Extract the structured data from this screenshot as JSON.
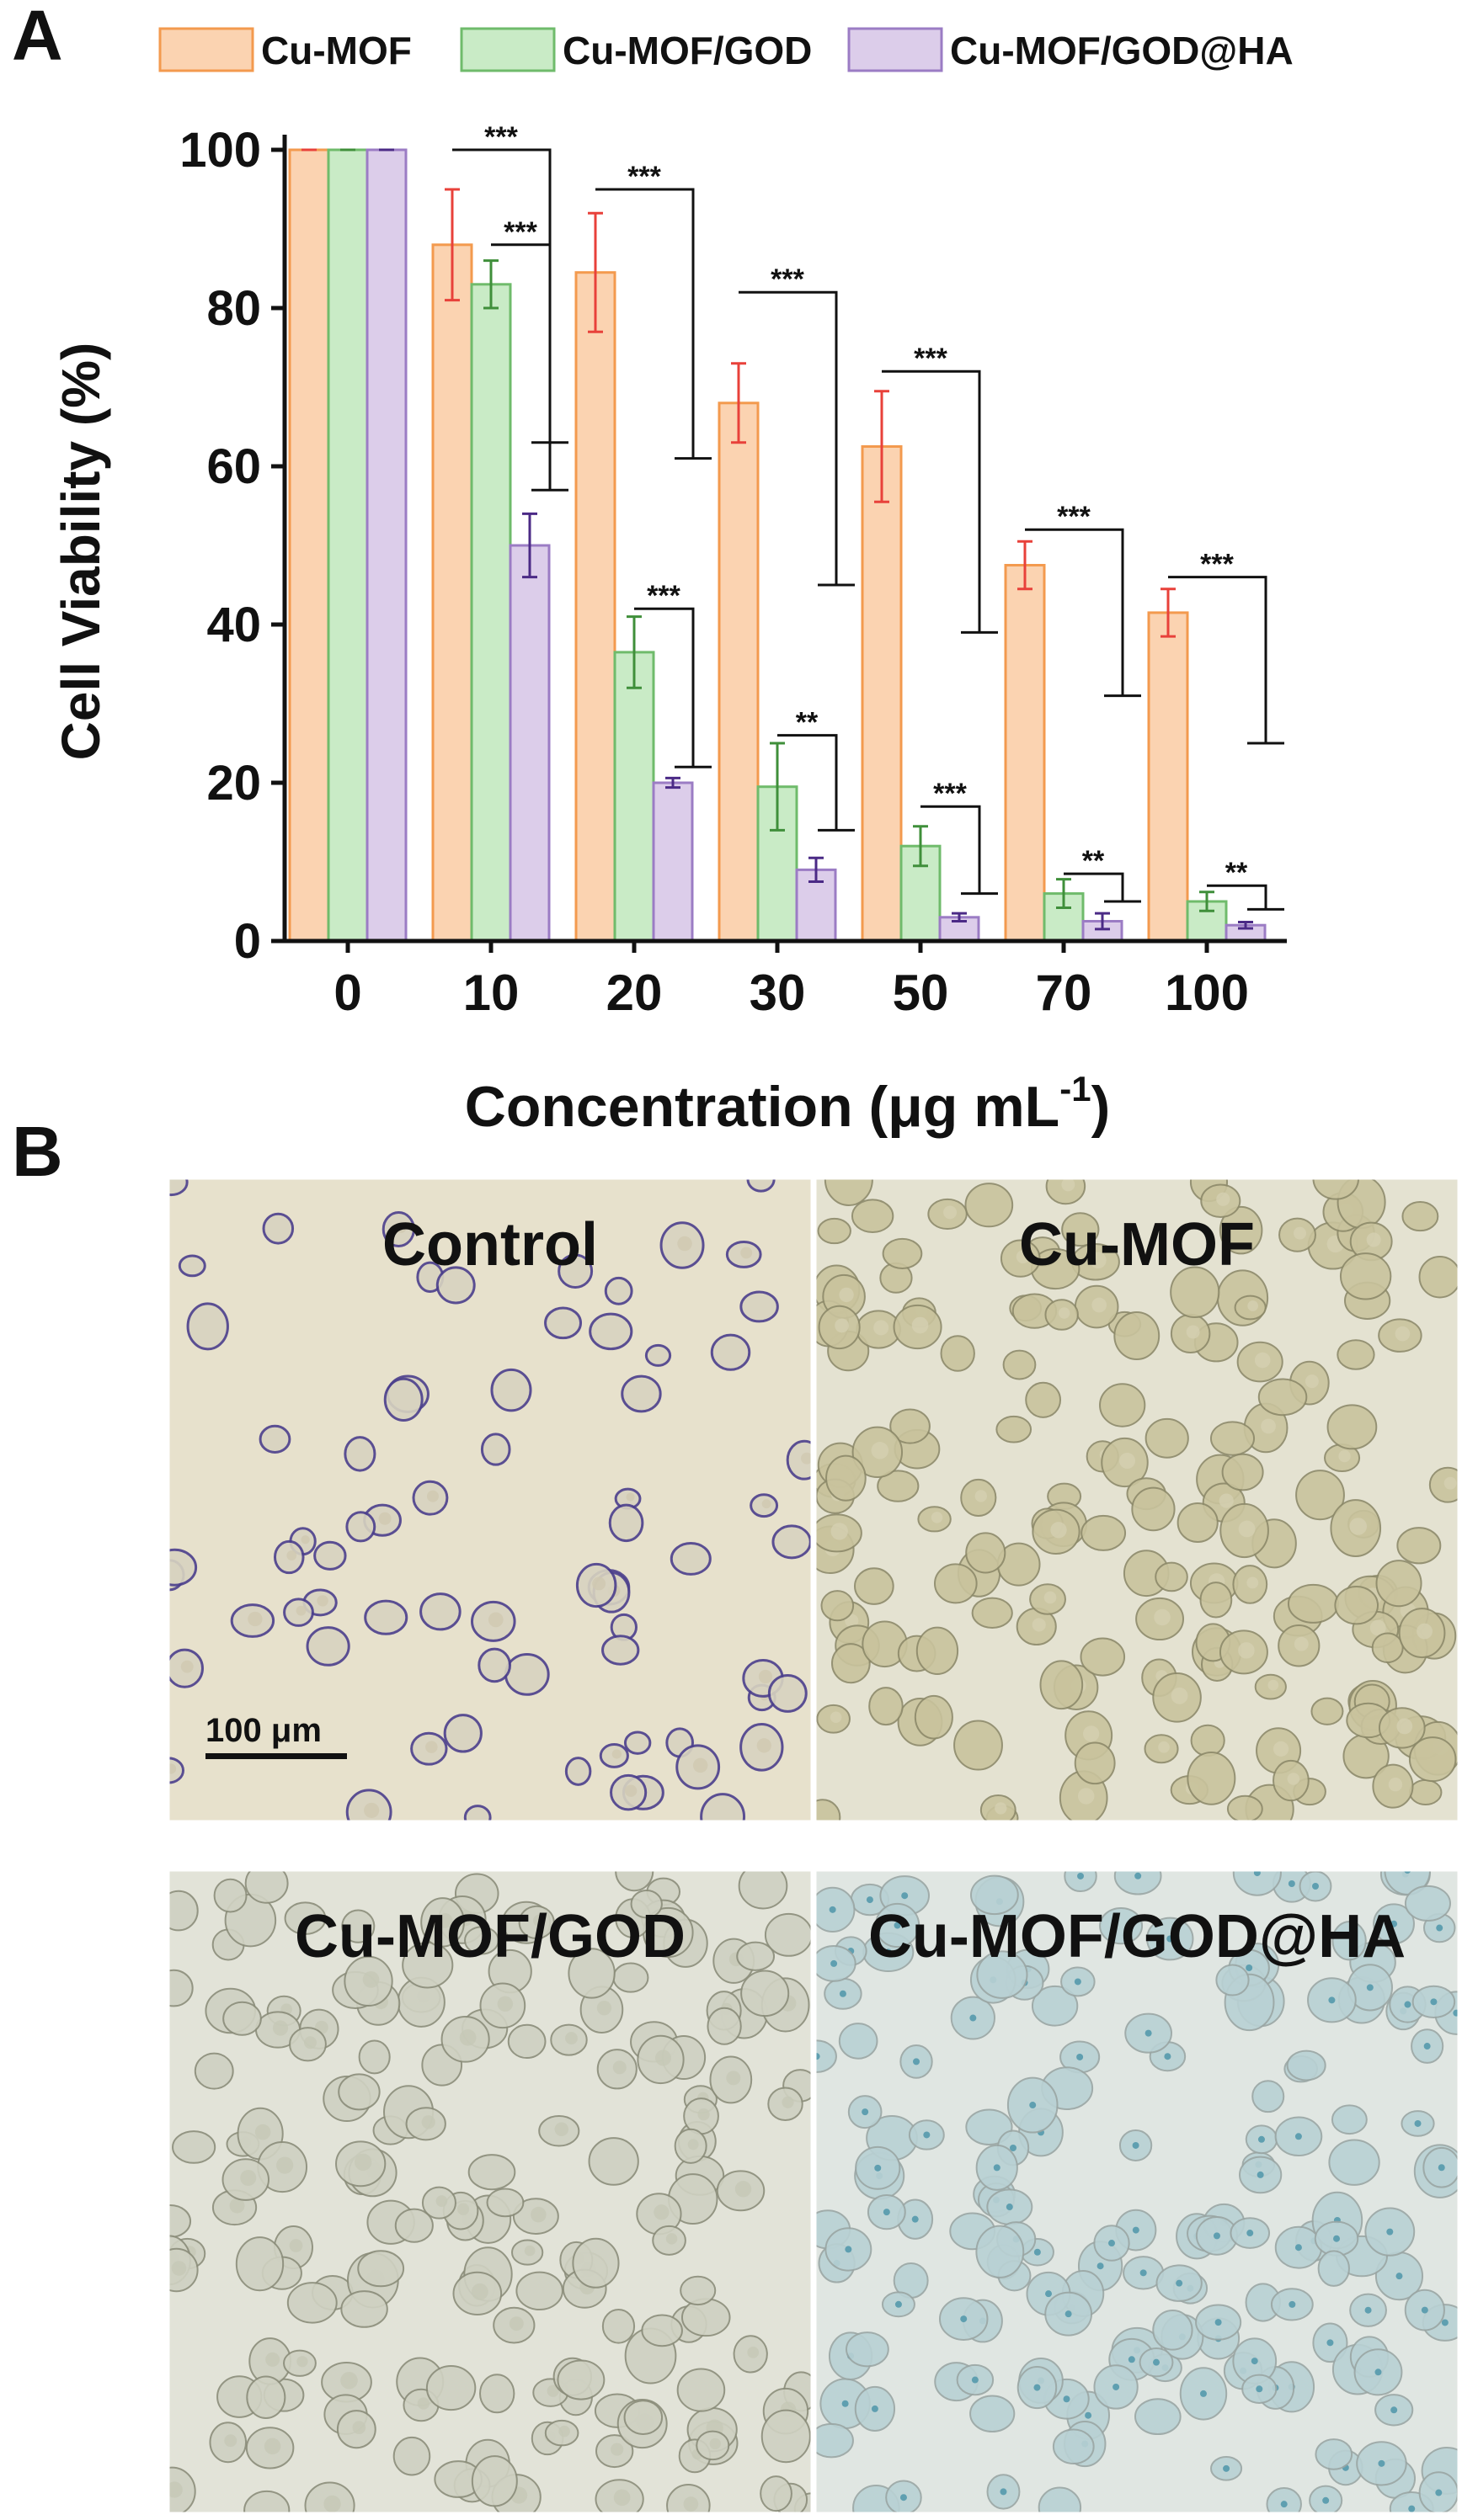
{
  "panel_a_label": "A",
  "panel_b_label": "B",
  "colors": {
    "cu_mof_fill": "#fbd3b1",
    "cu_mof_stroke": "#f39a4e",
    "cu_mof_err": "#e8413a",
    "cu_mof_god_fill": "#c9ebc6",
    "cu_mof_god_stroke": "#6fbb6b",
    "cu_mof_god_err": "#3f8f3a",
    "cu_mof_god_ha_fill": "#dccdea",
    "cu_mof_god_ha_stroke": "#9b7cc4",
    "cu_mof_god_ha_err": "#4b2a86"
  },
  "chart_data": {
    "type": "bar",
    "xlabel": "Concentration (μg mL",
    "xlabel_sup": "-1",
    "xlabel_close": ")",
    "ylabel": "Cell Viability (%)",
    "ylim": [
      0,
      100
    ],
    "yticks": [
      "0",
      "20",
      "40",
      "60",
      "80",
      "100"
    ],
    "categories": [
      "0",
      "10",
      "20",
      "30",
      "50",
      "70",
      "100"
    ],
    "legend_position": "top",
    "series": [
      {
        "name": "Cu-MOF",
        "values": [
          100,
          88,
          84.5,
          68,
          62.5,
          47.5,
          41.5
        ],
        "errors": [
          0,
          7,
          7.5,
          5,
          7,
          3,
          3
        ]
      },
      {
        "name": "Cu-MOF/GOD",
        "values": [
          100,
          83,
          36.5,
          19.5,
          12,
          6,
          5
        ],
        "errors": [
          0,
          3,
          4.5,
          5.5,
          2.5,
          1.8,
          1.2
        ]
      },
      {
        "name": "Cu-MOF/GOD@HA",
        "values": [
          100,
          50,
          20,
          9,
          3,
          2.5,
          2
        ],
        "errors": [
          0,
          4,
          0.6,
          1.5,
          0.5,
          1,
          0.4
        ]
      }
    ],
    "significance": [
      {
        "category": "10",
        "pair": [
          0,
          2
        ],
        "label": "***",
        "level": 100,
        "drop": 63
      },
      {
        "category": "10",
        "pair": [
          1,
          2
        ],
        "label": "***",
        "level": 88,
        "drop": 57
      },
      {
        "category": "20",
        "pair": [
          0,
          2
        ],
        "label": "***",
        "level": 95,
        "drop": 61
      },
      {
        "category": "20",
        "pair": [
          1,
          2
        ],
        "label": "***",
        "level": 42,
        "drop": 22
      },
      {
        "category": "30",
        "pair": [
          0,
          2
        ],
        "label": "***",
        "level": 82,
        "drop": 45
      },
      {
        "category": "30",
        "pair": [
          1,
          2
        ],
        "label": "**",
        "level": 26,
        "drop": 14
      },
      {
        "category": "50",
        "pair": [
          0,
          2
        ],
        "label": "***",
        "level": 72,
        "drop": 39
      },
      {
        "category": "50",
        "pair": [
          1,
          2
        ],
        "label": "***",
        "level": 17,
        "drop": 6
      },
      {
        "category": "70",
        "pair": [
          0,
          2
        ],
        "label": "***",
        "level": 52,
        "drop": 31
      },
      {
        "category": "70",
        "pair": [
          1,
          2
        ],
        "label": "**",
        "level": 8.5,
        "drop": 5
      },
      {
        "category": "100",
        "pair": [
          0,
          2
        ],
        "label": "***",
        "level": 46,
        "drop": 25
      },
      {
        "category": "100",
        "pair": [
          1,
          2
        ],
        "label": "**",
        "level": 7,
        "drop": 4
      }
    ]
  },
  "micrographs": [
    {
      "label": "Control",
      "scalebar": "100 μm"
    },
    {
      "label": "Cu-MOF"
    },
    {
      "label": "Cu-MOF/GOD"
    },
    {
      "label": "Cu-MOF/GOD@HA"
    }
  ]
}
